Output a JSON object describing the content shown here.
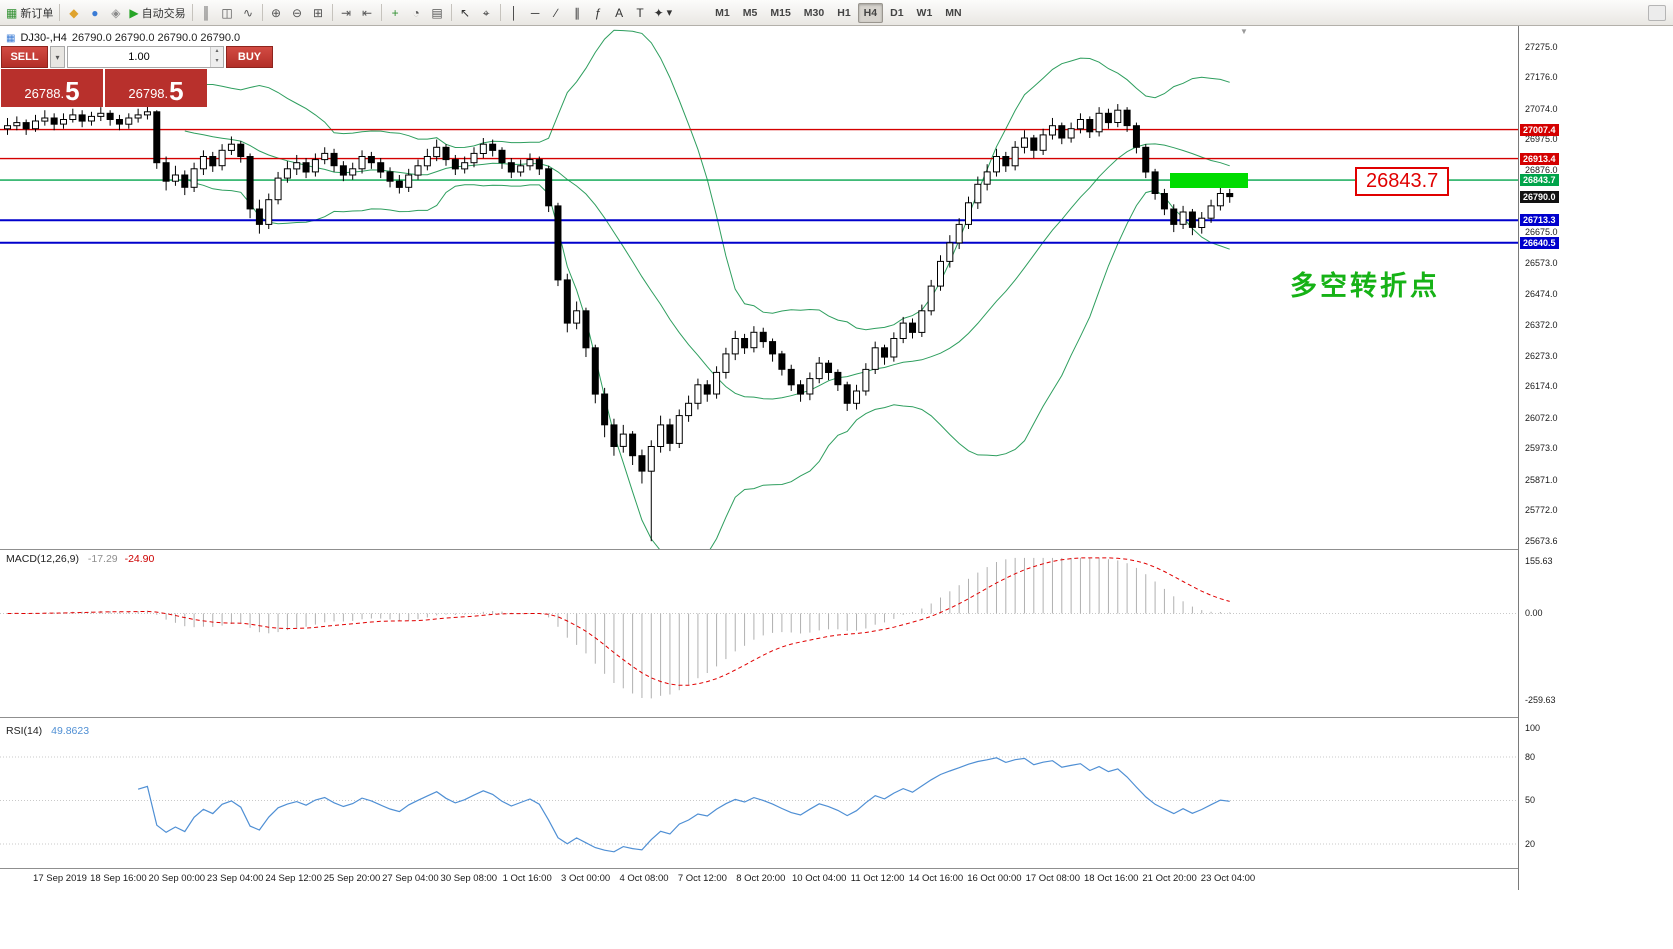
{
  "icons": {
    "chevron_down": "▾",
    "spinner_up": "▴",
    "spinner_down": "▾",
    "triangle_down": "▼",
    "chart_symbol": "▦"
  },
  "toolbar": {
    "buttons": [
      {
        "name": "new-order-button",
        "icon": "new-order-icon",
        "glyph": "▦",
        "glyph_color": "#2f8f2f",
        "label": "新订单"
      },
      {
        "sep": true
      },
      {
        "name": "market-watch-button",
        "icon": "market-watch-icon",
        "glyph": "◆",
        "glyph_color": "#dfa32e",
        "label": ""
      },
      {
        "name": "data-window-button",
        "icon": "data-window-icon",
        "glyph": "●",
        "glyph_color": "#3a7bd5",
        "label": ""
      },
      {
        "name": "navigator-button",
        "icon": "navigator-icon",
        "glyph": "◈",
        "glyph_color": "#8a8a8a",
        "label": ""
      },
      {
        "name": "auto-trading-button",
        "icon": "auto-trading-icon",
        "glyph": "▶",
        "glyph_color": "#27a527",
        "label": "自动交易"
      },
      {
        "sep": true
      },
      {
        "name": "bar-chart-button",
        "icon": "bar-chart-icon",
        "glyph": "║",
        "glyph_color": "#555555",
        "label": ""
      },
      {
        "name": "candlestick-chart-button",
        "icon": "candlestick-icon",
        "glyph": "◫",
        "glyph_color": "#555555",
        "label": ""
      },
      {
        "name": "line-chart-button",
        "icon": "line-chart-icon",
        "glyph": "∿",
        "glyph_color": "#555555",
        "label": ""
      },
      {
        "sep": true
      },
      {
        "name": "zoom-in-button",
        "icon": "zoom-in-icon",
        "glyph": "⊕",
        "glyph_color": "#555555",
        "label": ""
      },
      {
        "name": "zoom-out-button",
        "icon": "zoom-out-icon",
        "glyph": "⊖",
        "glyph_color": "#555555",
        "label": ""
      },
      {
        "name": "grid-button",
        "icon": "grid-icon",
        "glyph": "⊞",
        "glyph_color": "#555555",
        "label": ""
      },
      {
        "sep": true
      },
      {
        "name": "auto-scroll-button",
        "icon": "auto-scroll-icon",
        "glyph": "⇥",
        "glyph_color": "#555555",
        "label": ""
      },
      {
        "name": "chart-shift-button",
        "icon": "chart-shift-icon",
        "glyph": "⇤",
        "glyph_color": "#555555",
        "label": ""
      },
      {
        "sep": true
      },
      {
        "name": "indicators-button",
        "icon": "indicators-icon",
        "glyph": "+",
        "glyph_color": "#2f8f2f",
        "label": ""
      },
      {
        "name": "periods-button",
        "icon": "clock-icon",
        "glyph": "◔",
        "glyph_color": "#555555",
        "label": ""
      },
      {
        "name": "templates-button",
        "icon": "template-icon",
        "glyph": "▤",
        "glyph_color": "#555555",
        "label": ""
      },
      {
        "sep": true
      },
      {
        "name": "cursor-button",
        "icon": "cursor-icon",
        "glyph": "↖",
        "glyph_color": "#333333",
        "label": ""
      },
      {
        "name": "crosshair-button",
        "icon": "crosshair-icon",
        "glyph": "⌖",
        "glyph_color": "#333333",
        "label": ""
      },
      {
        "sep": true
      },
      {
        "name": "vertical-line-button",
        "icon": "vertical-line-icon",
        "glyph": "│",
        "glyph_color": "#333333",
        "label": ""
      },
      {
        "name": "horizontal-line-button",
        "icon": "horizontal-line-icon",
        "glyph": "─",
        "glyph_color": "#333333",
        "label": ""
      },
      {
        "name": "trendline-button",
        "icon": "trendline-icon",
        "glyph": "∕",
        "glyph_color": "#333333",
        "label": ""
      },
      {
        "name": "channel-button",
        "icon": "channel-icon",
        "glyph": "∥",
        "glyph_color": "#333333",
        "label": ""
      },
      {
        "name": "fibonacci-button",
        "icon": "fibonacci-icon",
        "glyph": "ƒ",
        "glyph_color": "#333333",
        "label": ""
      },
      {
        "name": "text-button",
        "icon": "text-icon",
        "glyph": "A",
        "glyph_color": "#333333",
        "label": ""
      },
      {
        "name": "text-label-button",
        "icon": "text-label-icon",
        "glyph": "T",
        "glyph_color": "#333333",
        "label": ""
      },
      {
        "name": "arrows-button",
        "icon": "arrows-icon",
        "glyph": "✦",
        "glyph_color": "#333333",
        "label": "▾"
      }
    ],
    "timeframes": [
      "M1",
      "M5",
      "M15",
      "M30",
      "H1",
      "H4",
      "D1",
      "W1",
      "MN"
    ],
    "active_timeframe": "H4"
  },
  "chart_header": {
    "symbol_period": "DJ30-,H4",
    "ohlc": "26790.0 26790.0 26790.0 26790.0"
  },
  "trade_panel": {
    "sell_label": "SELL",
    "buy_label": "BUY",
    "volume": "1.00",
    "sell_price": "26788.5",
    "buy_price": "26798.5",
    "sell_price_main": "26788.",
    "sell_price_big": "5",
    "buy_price_main": "26798.",
    "buy_price_big": "5"
  },
  "annotations": {
    "flag_text": "26843.7",
    "note_text": "多空转折点"
  },
  "price_axis": {
    "ticks": [
      "27275.0",
      "27176.0",
      "27074.0",
      "26975.0",
      "26876.0",
      "26776.0",
      "26675.0",
      "26573.0",
      "26474.0",
      "26372.0",
      "26273.0",
      "26174.0",
      "26072.0",
      "25973.0",
      "25871.0",
      "25772.0",
      "25673.6"
    ],
    "flags": [
      {
        "text": "27007.4",
        "color": "#d40000"
      },
      {
        "text": "26913.4",
        "color": "#d40000"
      },
      {
        "text": "26843.7",
        "color": "#00a44a"
      },
      {
        "text": "26790.0",
        "color": "#111111"
      },
      {
        "text": "26713.3",
        "color": "#0000cc"
      },
      {
        "text": "26640.5",
        "color": "#0000cc"
      }
    ]
  },
  "macd": {
    "label": "MACD(12,26,9)",
    "value_main": "-17.29",
    "value_signal": "-24.90",
    "axis": [
      {
        "text": "155.63",
        "value": 155.63
      },
      {
        "text": "0.00",
        "value": 0
      },
      {
        "text": "-259.63",
        "value": -259.63
      }
    ]
  },
  "rsi": {
    "label": "RSI(14)",
    "value": "49.8623",
    "axis": [
      {
        "text": "100",
        "value": 100
      },
      {
        "text": "80",
        "value": 80
      },
      {
        "text": "50",
        "value": 50
      },
      {
        "text": "20",
        "value": 20
      }
    ]
  },
  "chart_data": {
    "type": "candlestick",
    "symbol": "DJ30-",
    "timeframe": "H4",
    "title": "DJ30-,H4",
    "y_axis": {
      "min": 25673.6,
      "max": 27275.0
    },
    "current_price": 26790.0,
    "ohlc_order": [
      "open",
      "high",
      "low",
      "close"
    ],
    "candles": [
      [
        27010,
        27045,
        26990,
        27020
      ],
      [
        27020,
        27050,
        27005,
        27030
      ],
      [
        27030,
        27040,
        26990,
        27010
      ],
      [
        27010,
        27055,
        27000,
        27035
      ],
      [
        27035,
        27070,
        27020,
        27045
      ],
      [
        27045,
        27060,
        27005,
        27025
      ],
      [
        27025,
        27060,
        27010,
        27040
      ],
      [
        27040,
        27075,
        27030,
        27055
      ],
      [
        27055,
        27070,
        27015,
        27035
      ],
      [
        27035,
        27065,
        27020,
        27050
      ],
      [
        27050,
        27080,
        27035,
        27060
      ],
      [
        27060,
        27070,
        27020,
        27040
      ],
      [
        27040,
        27055,
        27005,
        27025
      ],
      [
        27025,
        27060,
        27010,
        27045
      ],
      [
        27045,
        27075,
        27030,
        27055
      ],
      [
        27055,
        27085,
        27040,
        27065
      ],
      [
        27065,
        27070,
        26880,
        26900
      ],
      [
        26900,
        26920,
        26810,
        26840
      ],
      [
        26840,
        26890,
        26825,
        26860
      ],
      [
        26860,
        26875,
        26795,
        26820
      ],
      [
        26820,
        26900,
        26805,
        26880
      ],
      [
        26880,
        26940,
        26860,
        26920
      ],
      [
        26920,
        26935,
        26870,
        26890
      ],
      [
        26890,
        26960,
        26875,
        26940
      ],
      [
        26940,
        26985,
        26925,
        26960
      ],
      [
        26960,
        26970,
        26900,
        26920
      ],
      [
        26920,
        26930,
        26720,
        26750
      ],
      [
        26750,
        26780,
        26670,
        26700
      ],
      [
        26700,
        26800,
        26685,
        26780
      ],
      [
        26780,
        26870,
        26765,
        26850
      ],
      [
        26850,
        26905,
        26835,
        26880
      ],
      [
        26880,
        26925,
        26860,
        26900
      ],
      [
        26900,
        26915,
        26850,
        26870
      ],
      [
        26870,
        26930,
        26855,
        26910
      ],
      [
        26910,
        26950,
        26895,
        26930
      ],
      [
        26930,
        26945,
        26870,
        26890
      ],
      [
        26890,
        26905,
        26840,
        26860
      ],
      [
        26860,
        26900,
        26845,
        26880
      ],
      [
        26880,
        26940,
        26865,
        26920
      ],
      [
        26920,
        26935,
        26880,
        26900
      ],
      [
        26900,
        26915,
        26850,
        26870
      ],
      [
        26870,
        26885,
        26820,
        26840
      ],
      [
        26840,
        26860,
        26800,
        26820
      ],
      [
        26820,
        26880,
        26805,
        26860
      ],
      [
        26860,
        26910,
        26845,
        26890
      ],
      [
        26890,
        26945,
        26875,
        26920
      ],
      [
        26920,
        26975,
        26905,
        26950
      ],
      [
        26950,
        26960,
        26890,
        26910
      ],
      [
        26910,
        26925,
        26860,
        26880
      ],
      [
        26880,
        26920,
        26865,
        26900
      ],
      [
        26900,
        26950,
        26885,
        26930
      ],
      [
        26930,
        26980,
        26915,
        26960
      ],
      [
        26960,
        26975,
        26920,
        26940
      ],
      [
        26940,
        26950,
        26880,
        26900
      ],
      [
        26900,
        26915,
        26850,
        26870
      ],
      [
        26870,
        26910,
        26855,
        26890
      ],
      [
        26890,
        26930,
        26875,
        26910
      ],
      [
        26910,
        26920,
        26860,
        26880
      ],
      [
        26880,
        26890,
        26740,
        26760
      ],
      [
        26760,
        26770,
        26500,
        26520
      ],
      [
        26520,
        26540,
        26350,
        26380
      ],
      [
        26380,
        26450,
        26360,
        26420
      ],
      [
        26420,
        26430,
        26270,
        26300
      ],
      [
        26300,
        26310,
        26120,
        26150
      ],
      [
        26150,
        26170,
        26010,
        26050
      ],
      [
        26050,
        26070,
        25950,
        25980
      ],
      [
        25980,
        26050,
        25960,
        26020
      ],
      [
        26020,
        26030,
        25920,
        25950
      ],
      [
        25950,
        25970,
        25860,
        25900
      ],
      [
        25900,
        26000,
        25673,
        25980
      ],
      [
        25980,
        26080,
        25960,
        26050
      ],
      [
        26050,
        26070,
        25965,
        25990
      ],
      [
        25990,
        26100,
        25975,
        26080
      ],
      [
        26080,
        26145,
        26060,
        26120
      ],
      [
        26120,
        26200,
        26100,
        26180
      ],
      [
        26180,
        26195,
        26125,
        26150
      ],
      [
        26150,
        26240,
        26135,
        26220
      ],
      [
        26220,
        26300,
        26200,
        26280
      ],
      [
        26280,
        26355,
        26260,
        26330
      ],
      [
        26330,
        26345,
        26280,
        26300
      ],
      [
        26300,
        26370,
        26285,
        26350
      ],
      [
        26350,
        26365,
        26300,
        26320
      ],
      [
        26320,
        26330,
        26255,
        26280
      ],
      [
        26280,
        26290,
        26210,
        26230
      ],
      [
        26230,
        26245,
        26160,
        26180
      ],
      [
        26180,
        26195,
        26125,
        26150
      ],
      [
        26150,
        26220,
        26130,
        26200
      ],
      [
        26200,
        26270,
        26185,
        26250
      ],
      [
        26250,
        26260,
        26195,
        26220
      ],
      [
        26220,
        26230,
        26160,
        26180
      ],
      [
        26180,
        26190,
        26095,
        26120
      ],
      [
        26120,
        26180,
        26100,
        26160
      ],
      [
        26160,
        26250,
        26145,
        26230
      ],
      [
        26230,
        26320,
        26215,
        26300
      ],
      [
        26300,
        26310,
        26245,
        26270
      ],
      [
        26270,
        26350,
        26255,
        26330
      ],
      [
        26330,
        26400,
        26315,
        26380
      ],
      [
        26380,
        26395,
        26330,
        26350
      ],
      [
        26350,
        26440,
        26335,
        26420
      ],
      [
        26420,
        26520,
        26405,
        26500
      ],
      [
        26500,
        26600,
        26485,
        26580
      ],
      [
        26580,
        26665,
        26560,
        26640
      ],
      [
        26640,
        26720,
        26620,
        26700
      ],
      [
        26700,
        26790,
        26685,
        26770
      ],
      [
        26770,
        26855,
        26750,
        26830
      ],
      [
        26830,
        26895,
        26810,
        26870
      ],
      [
        26870,
        26945,
        26855,
        26920
      ],
      [
        26920,
        26935,
        26870,
        26890
      ],
      [
        26890,
        26970,
        26875,
        26950
      ],
      [
        26950,
        27005,
        26930,
        26980
      ],
      [
        26980,
        26990,
        26915,
        26940
      ],
      [
        26940,
        27010,
        26925,
        26990
      ],
      [
        26990,
        27045,
        26975,
        27020
      ],
      [
        27020,
        27030,
        26960,
        26980
      ],
      [
        26980,
        27030,
        26965,
        27010
      ],
      [
        27010,
        27060,
        26995,
        27040
      ],
      [
        27040,
        27050,
        26980,
        27000
      ],
      [
        27000,
        27080,
        26985,
        27060
      ],
      [
        27060,
        27075,
        27010,
        27030
      ],
      [
        27030,
        27090,
        27015,
        27070
      ],
      [
        27070,
        27080,
        27000,
        27020
      ],
      [
        27020,
        27030,
        26930,
        26950
      ],
      [
        26950,
        26960,
        26850,
        26870
      ],
      [
        26870,
        26880,
        26780,
        26800
      ],
      [
        26800,
        26815,
        26730,
        26750
      ],
      [
        26750,
        26765,
        26675,
        26700
      ],
      [
        26700,
        26760,
        26685,
        26740
      ],
      [
        26740,
        26750,
        26665,
        26690
      ],
      [
        26690,
        26740,
        26670,
        26720
      ],
      [
        26720,
        26780,
        26705,
        26760
      ],
      [
        26760,
        26820,
        26745,
        26800
      ],
      [
        26800,
        26815,
        26770,
        26790
      ]
    ],
    "overlays": [
      {
        "name": "bollinger_bands",
        "period": 20,
        "deviation": 2,
        "color": "#2e9e5e"
      }
    ],
    "hlines": [
      {
        "value": 27007.4,
        "color": "#d40000",
        "width": 1.4
      },
      {
        "value": 26913.4,
        "color": "#d40000",
        "width": 1.4
      },
      {
        "value": 26843.7,
        "color": "#00a44a",
        "width": 1.4
      },
      {
        "value": 26713.3,
        "color": "#0000cc",
        "width": 2
      },
      {
        "value": 26640.5,
        "color": "#0000cc",
        "width": 2
      }
    ],
    "highlight_zone": {
      "price": 26843.7,
      "color": "#00dc00"
    },
    "indicators": [
      {
        "type": "macd",
        "params": [
          12,
          26,
          9
        ],
        "display_values": [
          -17.29,
          -24.9
        ],
        "histogram_color": "#b0b0b0",
        "signal_color": "#e00000",
        "axis_range": [
          -259.63,
          155.63
        ]
      },
      {
        "type": "rsi",
        "params": [
          14
        ],
        "display_value": 49.8623,
        "color": "#4f8fd4",
        "axis_range": [
          0,
          100
        ],
        "levels": [
          80,
          50,
          20
        ]
      }
    ],
    "x_labels": [
      "17 Sep 2019",
      "18 Sep 16:00",
      "20 Sep 00:00",
      "23 Sep 04:00",
      "24 Sep 12:00",
      "25 Sep 20:00",
      "27 Sep 04:00",
      "30 Sep 08:00",
      "1 Oct 16:00",
      "3 Oct 00:00",
      "4 Oct 08:00",
      "7 Oct 12:00",
      "8 Oct 20:00",
      "10 Oct 04:00",
      "11 Oct 12:00",
      "14 Oct 16:00",
      "16 Oct 00:00",
      "17 Oct 08:00",
      "18 Oct 16:00",
      "21 Oct 20:00",
      "23 Oct 04:00"
    ]
  }
}
